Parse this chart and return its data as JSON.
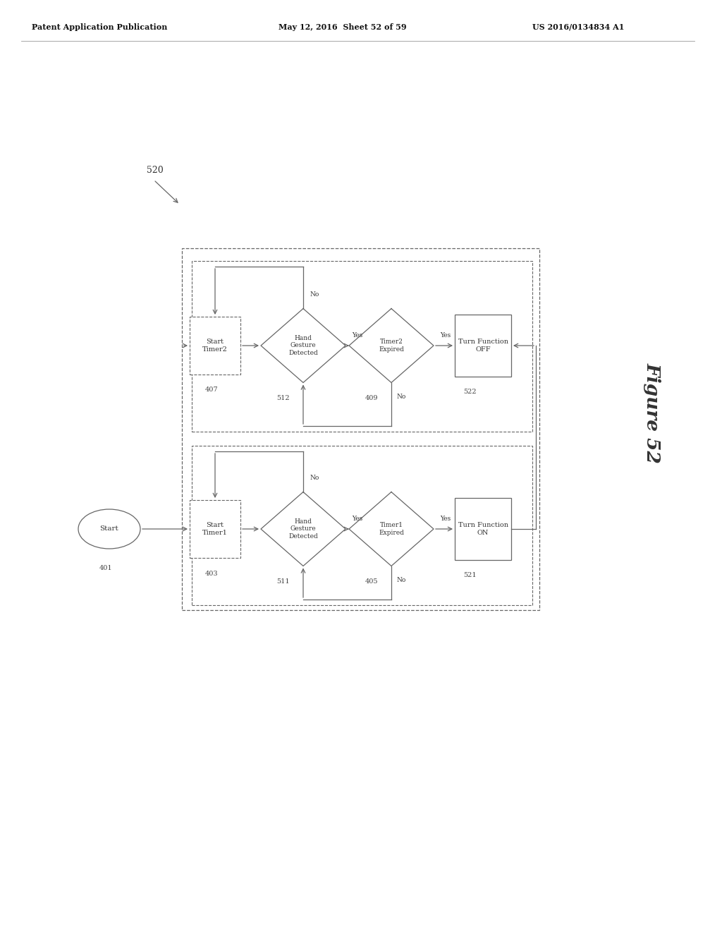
{
  "bg_color": "#ffffff",
  "header_left": "Patent Application Publication",
  "header_mid": "May 12, 2016  Sheet 52 of 59",
  "header_right": "US 2016/0134834 A1",
  "figure_label": "Figure 52",
  "line_color": "#666666",
  "text_color": "#333333"
}
